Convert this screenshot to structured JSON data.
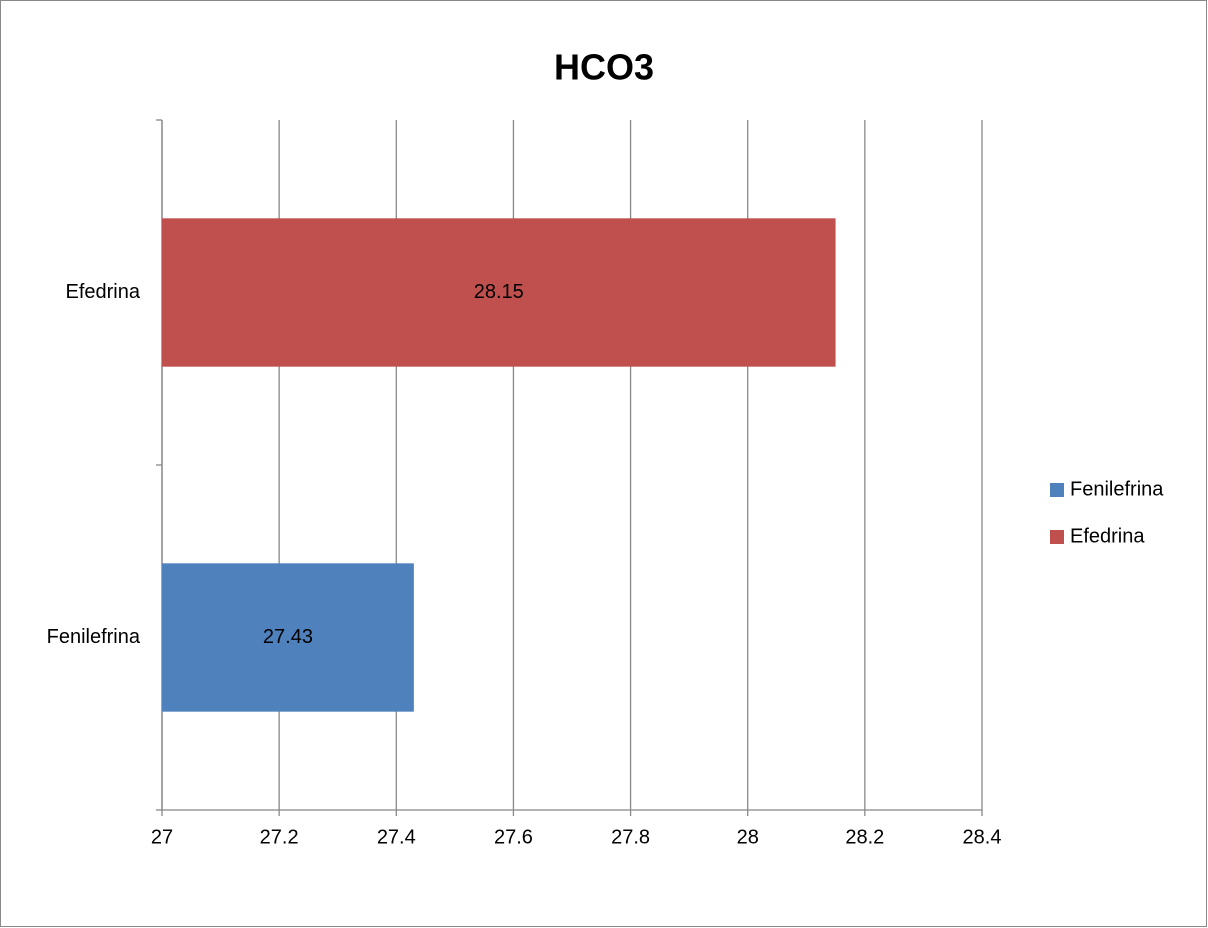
{
  "chart_data": {
    "type": "bar",
    "orientation": "horizontal",
    "title": "HCO3",
    "categories": [
      "Fenilefrina",
      "Efedrina"
    ],
    "series": [
      {
        "name": "Fenilefrina",
        "color": "#4f81bd",
        "values": [
          27.43,
          null
        ]
      },
      {
        "name": "Efedrina",
        "color": "#c0504d",
        "values": [
          null,
          28.15
        ]
      }
    ],
    "xlim": [
      27,
      28.4
    ],
    "xticks": [
      27,
      27.2,
      27.4,
      27.6,
      27.8,
      28,
      28.2,
      28.4
    ],
    "grid": true,
    "legend": "right"
  }
}
